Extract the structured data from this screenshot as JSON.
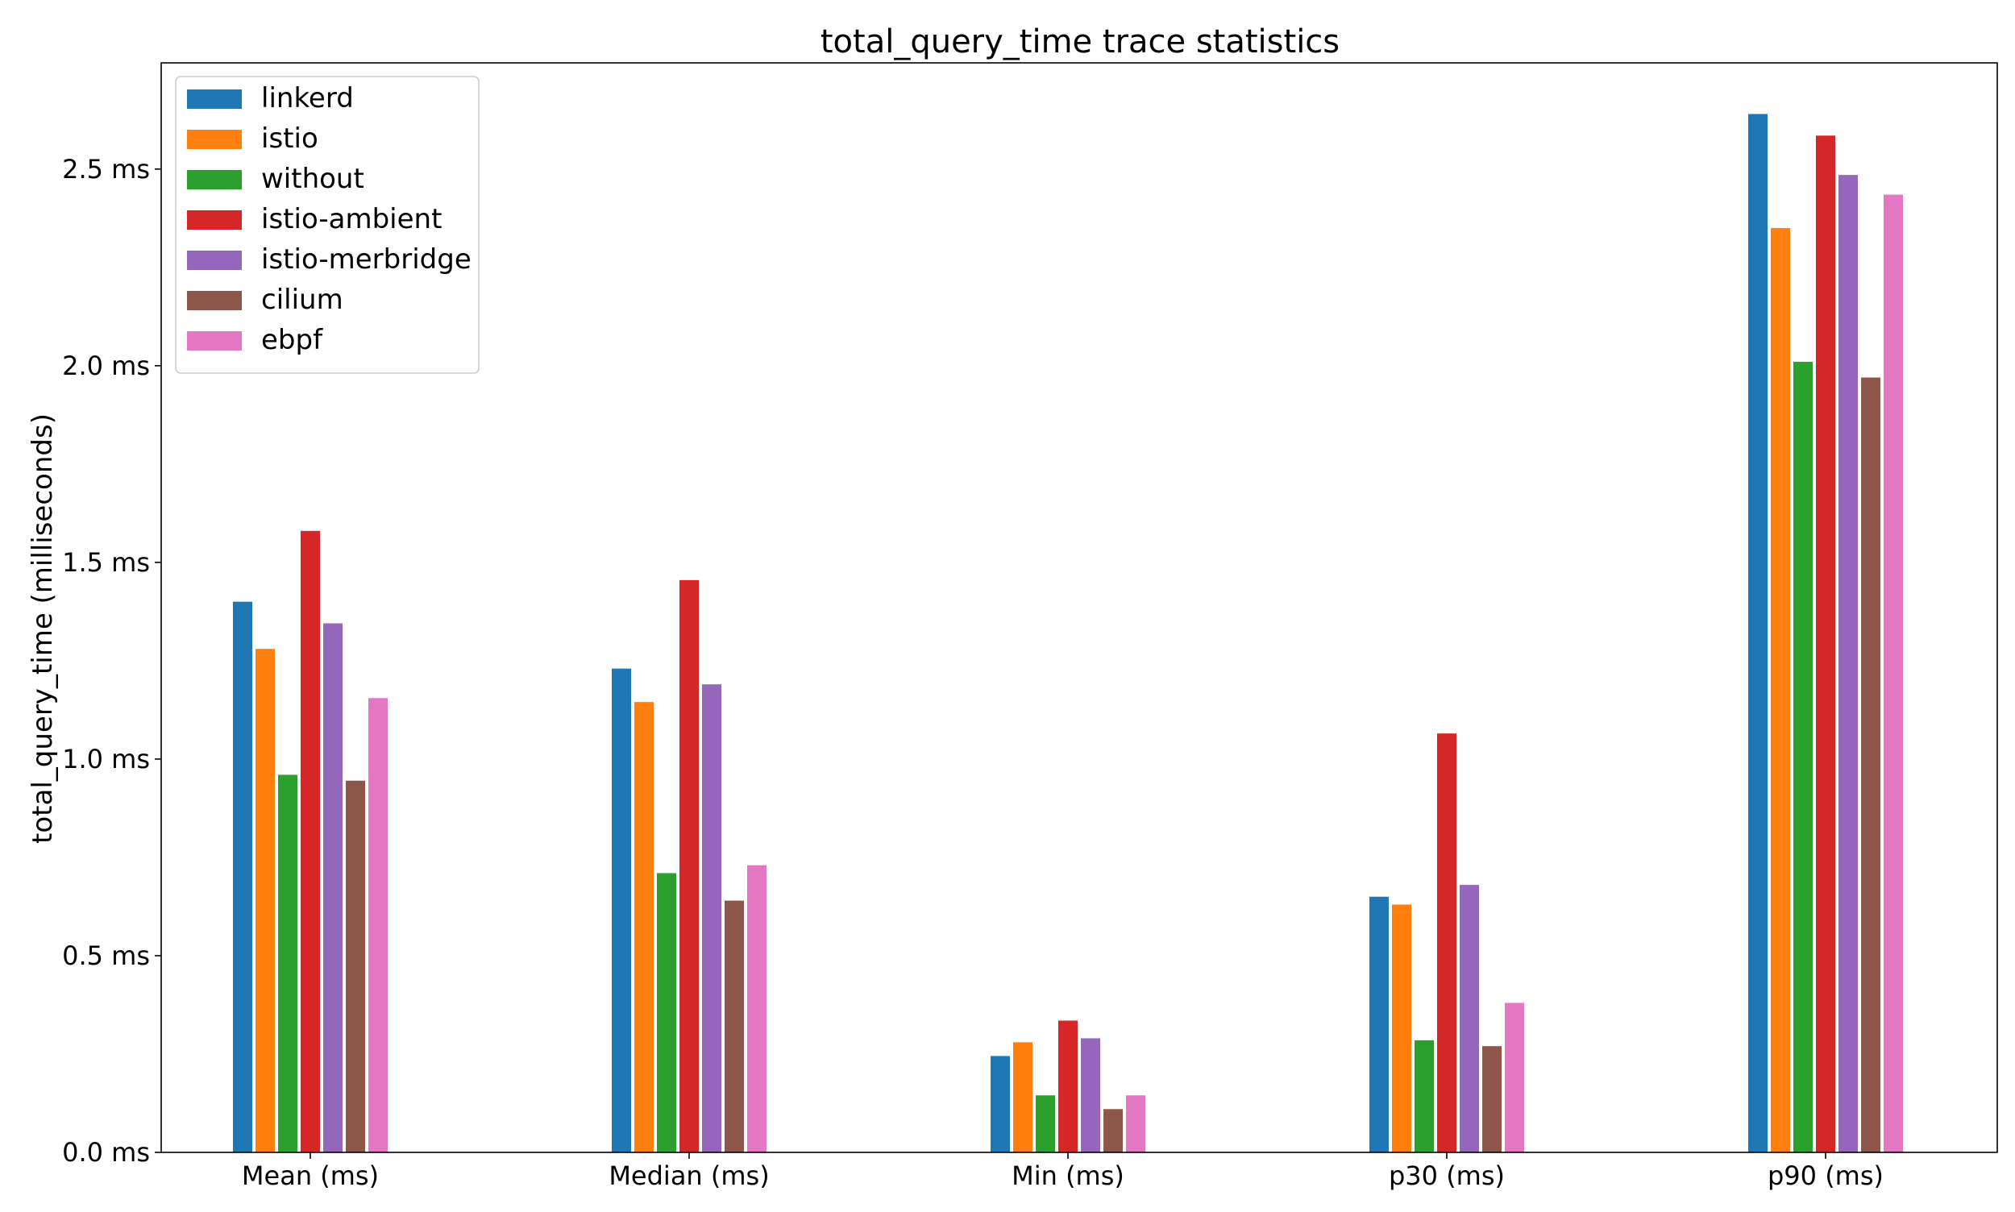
{
  "chart_data": {
    "type": "bar",
    "title": "total_query_time trace statistics",
    "xlabel": "",
    "ylabel": "total_query_time (milliseconds)",
    "ylim": [
      0,
      2.77
    ],
    "yticks": [
      0.0,
      0.5,
      1.0,
      1.5,
      2.0,
      2.5
    ],
    "ytick_labels": [
      "0.0 ms",
      "0.5 ms",
      "1.0 ms",
      "1.5 ms",
      "2.0 ms",
      "2.5 ms"
    ],
    "categories": [
      "Mean (ms)",
      "Median (ms)",
      "Min (ms)",
      "p30 (ms)",
      "p90 (ms)"
    ],
    "grid": false,
    "legend_position": "top-left",
    "series": [
      {
        "name": "linkerd",
        "color": "#1f77b4",
        "values": [
          1.4,
          1.23,
          0.245,
          0.65,
          2.64
        ]
      },
      {
        "name": "istio",
        "color": "#ff7f0e",
        "values": [
          1.28,
          1.145,
          0.28,
          0.63,
          2.35
        ]
      },
      {
        "name": "without",
        "color": "#2ca02c",
        "values": [
          0.96,
          0.71,
          0.145,
          0.285,
          2.01
        ]
      },
      {
        "name": "istio-ambient",
        "color": "#d62728",
        "values": [
          1.58,
          1.455,
          0.335,
          1.065,
          2.585
        ]
      },
      {
        "name": "istio-merbridge",
        "color": "#9467bd",
        "values": [
          1.345,
          1.19,
          0.29,
          0.68,
          2.485
        ]
      },
      {
        "name": "cilium",
        "color": "#8c564b",
        "values": [
          0.945,
          0.64,
          0.11,
          0.27,
          1.97
        ]
      },
      {
        "name": "ebpf",
        "color": "#e377c2",
        "values": [
          1.155,
          0.73,
          0.145,
          0.38,
          2.435
        ]
      }
    ]
  }
}
